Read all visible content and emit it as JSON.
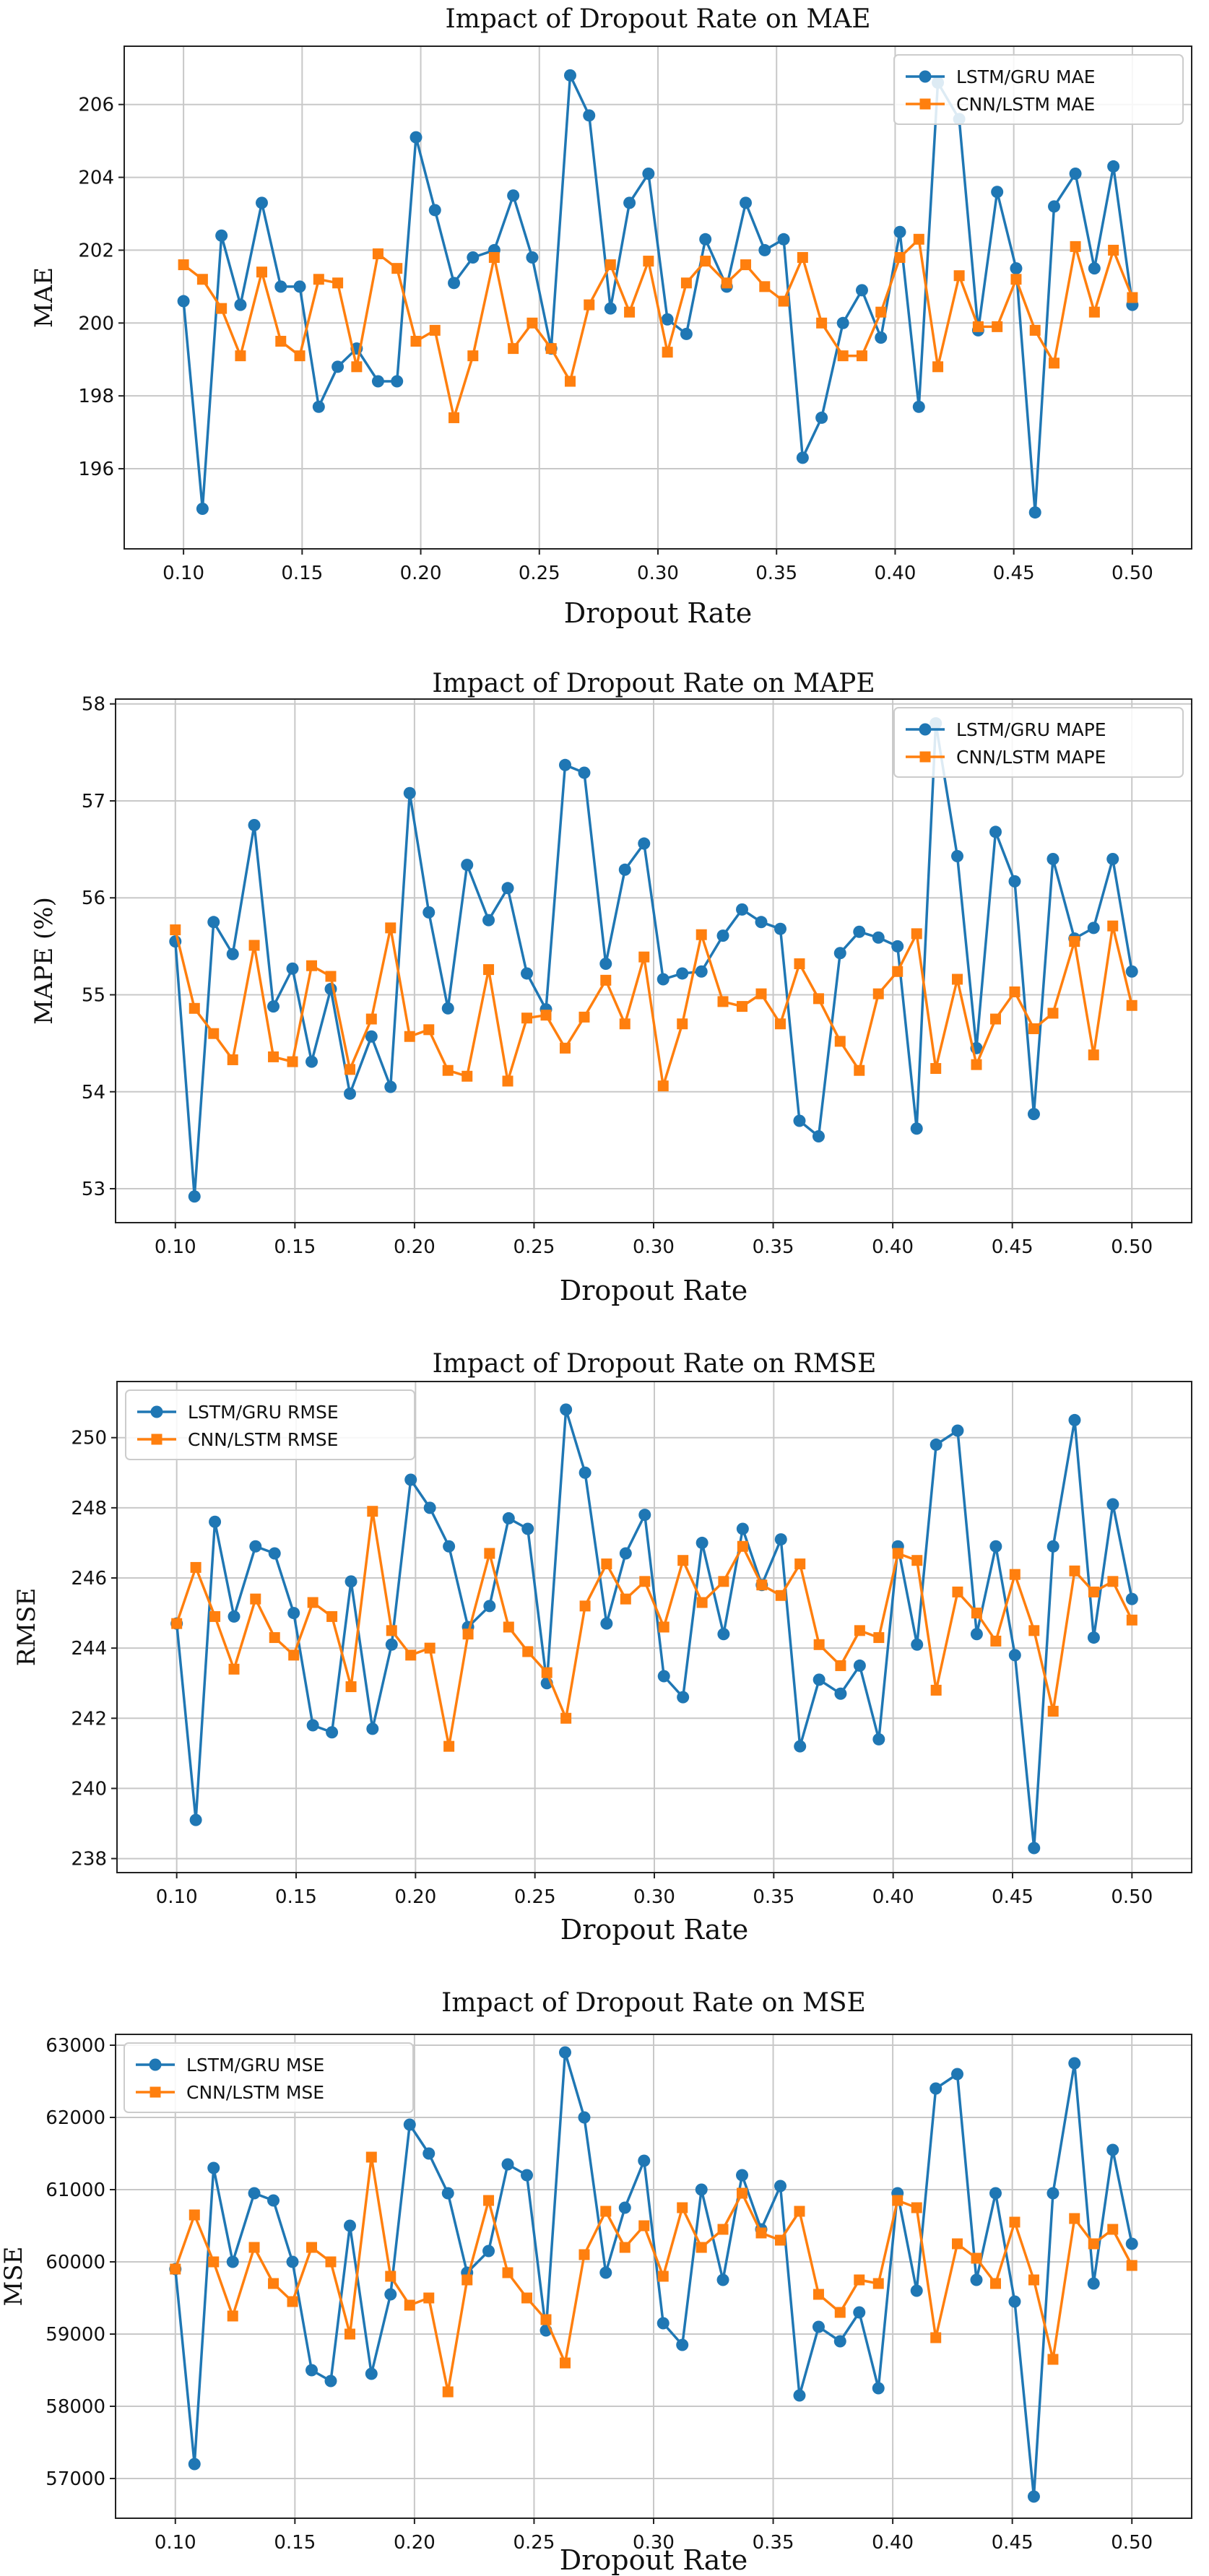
{
  "figure": {
    "colors": {
      "lstm": "#1f77b4",
      "cnn": "#ff7f0e"
    }
  },
  "chart_data": [
    {
      "type": "line",
      "title": "Impact of Dropout Rate on MAE",
      "xlabel": "Dropout Rate",
      "ylabel": "MAE",
      "xlim": [
        0.075,
        0.525
      ],
      "ylim": [
        193.8,
        207.6
      ],
      "xticks": [
        0.1,
        0.15,
        0.2,
        0.25,
        0.3,
        0.35,
        0.4,
        0.45,
        0.5
      ],
      "xtick_labels": [
        "0.10",
        "0.15",
        "0.20",
        "0.25",
        "0.30",
        "0.35",
        "0.40",
        "0.45",
        "0.50"
      ],
      "yticks": [
        196,
        198,
        200,
        202,
        204,
        206
      ],
      "ytick_labels": [
        "196",
        "198",
        "200",
        "202",
        "204",
        "206"
      ],
      "grid": true,
      "legend": "top-right",
      "x": [
        0.1,
        0.108,
        0.116,
        0.124,
        0.133,
        0.141,
        0.149,
        0.157,
        0.165,
        0.173,
        0.182,
        0.19,
        0.198,
        0.206,
        0.214,
        0.222,
        0.231,
        0.239,
        0.247,
        0.255,
        0.263,
        0.271,
        0.28,
        0.288,
        0.296,
        0.304,
        0.312,
        0.32,
        0.329,
        0.337,
        0.345,
        0.353,
        0.361,
        0.369,
        0.378,
        0.386,
        0.394,
        0.402,
        0.41,
        0.418,
        0.427,
        0.435,
        0.443,
        0.451,
        0.459,
        0.467,
        0.476,
        0.484,
        0.492,
        0.5
      ],
      "series": [
        {
          "name": "LSTM/GRU MAE",
          "marker": "circle",
          "color": "#1f77b4",
          "values": [
            200.6,
            194.9,
            202.4,
            200.5,
            203.3,
            201.0,
            201.0,
            197.7,
            198.8,
            199.3,
            198.4,
            198.4,
            205.1,
            203.1,
            201.1,
            201.8,
            202.0,
            203.5,
            201.8,
            199.3,
            206.8,
            205.7,
            200.4,
            203.3,
            204.1,
            200.1,
            199.7,
            202.3,
            201.0,
            203.3,
            202.0,
            202.3,
            196.3,
            197.4,
            200.0,
            200.9,
            199.6,
            202.5,
            197.7,
            206.6,
            205.6,
            199.8,
            203.6,
            201.5,
            194.8,
            203.2,
            204.1,
            201.5,
            204.3,
            200.5
          ]
        },
        {
          "name": "CNN/LSTM MAE",
          "marker": "square",
          "color": "#ff7f0e",
          "values": [
            201.6,
            201.2,
            200.4,
            199.1,
            201.4,
            199.5,
            199.1,
            201.2,
            201.1,
            198.8,
            201.9,
            201.5,
            199.5,
            199.8,
            197.4,
            199.1,
            201.8,
            199.3,
            200.0,
            199.3,
            198.4,
            200.5,
            201.6,
            200.3,
            201.7,
            199.2,
            201.1,
            201.7,
            201.1,
            201.6,
            201.0,
            200.6,
            201.8,
            200.0,
            199.1,
            199.1,
            200.3,
            201.8,
            202.3,
            198.8,
            201.3,
            199.9,
            199.9,
            201.2,
            199.8,
            198.9,
            202.1,
            200.3,
            202.0,
            200.7
          ]
        }
      ]
    },
    {
      "type": "line",
      "title": "Impact of Dropout Rate on MAPE",
      "xlabel": "Dropout Rate",
      "ylabel": "MAPE (%)",
      "xlim": [
        0.075,
        0.525
      ],
      "ylim": [
        52.65,
        58.05
      ],
      "xticks": [
        0.1,
        0.15,
        0.2,
        0.25,
        0.3,
        0.35,
        0.4,
        0.45,
        0.5
      ],
      "xtick_labels": [
        "0.10",
        "0.15",
        "0.20",
        "0.25",
        "0.30",
        "0.35",
        "0.40",
        "0.45",
        "0.50"
      ],
      "yticks": [
        53,
        54,
        55,
        56,
        57,
        58
      ],
      "ytick_labels": [
        "53",
        "54",
        "55",
        "56",
        "57",
        "58"
      ],
      "grid": true,
      "legend": "top-right",
      "x": [
        0.1,
        0.108,
        0.116,
        0.124,
        0.133,
        0.141,
        0.149,
        0.157,
        0.165,
        0.173,
        0.182,
        0.19,
        0.198,
        0.206,
        0.214,
        0.222,
        0.231,
        0.239,
        0.247,
        0.255,
        0.263,
        0.271,
        0.28,
        0.288,
        0.296,
        0.304,
        0.312,
        0.32,
        0.329,
        0.337,
        0.345,
        0.353,
        0.361,
        0.369,
        0.378,
        0.386,
        0.394,
        0.402,
        0.41,
        0.418,
        0.427,
        0.435,
        0.443,
        0.451,
        0.459,
        0.467,
        0.476,
        0.484,
        0.492,
        0.5
      ],
      "series": [
        {
          "name": "LSTM/GRU MAPE",
          "marker": "circle",
          "color": "#1f77b4",
          "values": [
            55.55,
            52.92,
            55.75,
            55.42,
            56.75,
            54.88,
            55.27,
            54.31,
            55.06,
            53.98,
            54.57,
            54.05,
            57.08,
            55.85,
            54.86,
            56.34,
            55.77,
            56.1,
            55.22,
            54.85,
            57.37,
            57.29,
            55.32,
            56.29,
            56.56,
            55.16,
            55.22,
            55.24,
            55.61,
            55.88,
            55.75,
            55.68,
            53.7,
            53.54,
            55.43,
            55.65,
            55.59,
            55.5,
            53.62,
            57.8,
            56.43,
            54.45,
            56.68,
            56.17,
            53.77,
            56.4,
            55.58,
            55.69,
            56.4,
            55.24
          ]
        },
        {
          "name": "CNN/LSTM MAPE",
          "marker": "square",
          "color": "#ff7f0e",
          "values": [
            55.67,
            54.86,
            54.6,
            54.33,
            55.51,
            54.36,
            54.31,
            55.3,
            55.19,
            54.23,
            54.75,
            55.69,
            54.57,
            54.64,
            54.22,
            54.16,
            55.26,
            54.11,
            54.76,
            54.79,
            54.45,
            54.77,
            55.15,
            54.7,
            55.39,
            54.06,
            54.7,
            55.62,
            54.93,
            54.88,
            55.01,
            54.7,
            55.32,
            54.96,
            54.52,
            54.22,
            55.01,
            55.24,
            55.63,
            54.24,
            55.16,
            54.28,
            54.75,
            55.03,
            54.65,
            54.81,
            55.55,
            54.38,
            55.71,
            54.89
          ]
        }
      ]
    },
    {
      "type": "line",
      "title": "Impact of Dropout Rate on RMSE",
      "xlabel": "Dropout Rate",
      "ylabel": "RMSE",
      "xlim": [
        0.075,
        0.525
      ],
      "ylim": [
        237.6,
        251.6
      ],
      "xticks": [
        0.1,
        0.15,
        0.2,
        0.25,
        0.3,
        0.35,
        0.4,
        0.45,
        0.5
      ],
      "xtick_labels": [
        "0.10",
        "0.15",
        "0.20",
        "0.25",
        "0.30",
        "0.35",
        "0.40",
        "0.45",
        "0.50"
      ],
      "yticks": [
        238,
        240,
        242,
        244,
        246,
        248,
        250
      ],
      "ytick_labels": [
        "238",
        "240",
        "242",
        "244",
        "246",
        "248",
        "250"
      ],
      "grid": true,
      "legend": "top-left",
      "x": [
        0.1,
        0.108,
        0.116,
        0.124,
        0.133,
        0.141,
        0.149,
        0.157,
        0.165,
        0.173,
        0.182,
        0.19,
        0.198,
        0.206,
        0.214,
        0.222,
        0.231,
        0.239,
        0.247,
        0.255,
        0.263,
        0.271,
        0.28,
        0.288,
        0.296,
        0.304,
        0.312,
        0.32,
        0.329,
        0.337,
        0.345,
        0.353,
        0.361,
        0.369,
        0.378,
        0.386,
        0.394,
        0.402,
        0.41,
        0.418,
        0.427,
        0.435,
        0.443,
        0.451,
        0.459,
        0.467,
        0.476,
        0.484,
        0.492,
        0.5
      ],
      "series": [
        {
          "name": "LSTM/GRU RMSE",
          "marker": "circle",
          "color": "#1f77b4",
          "values": [
            244.7,
            239.1,
            247.6,
            244.9,
            246.9,
            246.7,
            245.0,
            241.8,
            241.6,
            245.9,
            241.7,
            244.1,
            248.8,
            248.0,
            246.9,
            244.6,
            245.2,
            247.7,
            247.4,
            243.0,
            250.8,
            249.0,
            244.7,
            246.7,
            247.8,
            243.2,
            242.6,
            247.0,
            244.4,
            247.4,
            245.8,
            247.1,
            241.2,
            243.1,
            242.7,
            243.5,
            241.4,
            246.9,
            244.1,
            249.8,
            250.2,
            244.4,
            246.9,
            243.8,
            238.3,
            246.9,
            250.5,
            244.3,
            248.1,
            245.4
          ]
        },
        {
          "name": "CNN/LSTM RMSE",
          "marker": "square",
          "color": "#ff7f0e",
          "values": [
            244.7,
            246.3,
            244.9,
            243.4,
            245.4,
            244.3,
            243.8,
            245.3,
            244.9,
            242.9,
            247.9,
            244.5,
            243.8,
            244.0,
            241.2,
            244.4,
            246.7,
            244.6,
            243.9,
            243.3,
            242.0,
            245.2,
            246.4,
            245.4,
            245.9,
            244.6,
            246.5,
            245.3,
            245.9,
            246.9,
            245.8,
            245.5,
            246.4,
            244.1,
            243.5,
            244.5,
            244.3,
            246.7,
            246.5,
            242.8,
            245.6,
            245.0,
            244.2,
            246.1,
            244.5,
            242.2,
            246.2,
            245.6,
            245.9,
            244.8
          ]
        }
      ]
    },
    {
      "type": "line",
      "title": "Impact of Dropout Rate on MSE",
      "xlabel": "Dropout Rate",
      "ylabel": "MSE",
      "xlim": [
        0.075,
        0.525
      ],
      "ylim": [
        56450,
        63150
      ],
      "xticks": [
        0.1,
        0.15,
        0.2,
        0.25,
        0.3,
        0.35,
        0.4,
        0.45,
        0.5
      ],
      "xtick_labels": [
        "0.10",
        "0.15",
        "0.20",
        "0.25",
        "0.30",
        "0.35",
        "0.40",
        "0.45",
        "0.50"
      ],
      "yticks": [
        57000,
        58000,
        59000,
        60000,
        61000,
        62000,
        63000
      ],
      "ytick_labels": [
        "57000",
        "58000",
        "59000",
        "60000",
        "61000",
        "62000",
        "63000"
      ],
      "grid": true,
      "legend": "top-left",
      "x": [
        0.1,
        0.108,
        0.116,
        0.124,
        0.133,
        0.141,
        0.149,
        0.157,
        0.165,
        0.173,
        0.182,
        0.19,
        0.198,
        0.206,
        0.214,
        0.222,
        0.231,
        0.239,
        0.247,
        0.255,
        0.263,
        0.271,
        0.28,
        0.288,
        0.296,
        0.304,
        0.312,
        0.32,
        0.329,
        0.337,
        0.345,
        0.353,
        0.361,
        0.369,
        0.378,
        0.386,
        0.394,
        0.402,
        0.41,
        0.418,
        0.427,
        0.435,
        0.443,
        0.451,
        0.459,
        0.467,
        0.476,
        0.484,
        0.492,
        0.5
      ],
      "series": [
        {
          "name": "LSTM/GRU MSE",
          "marker": "circle",
          "color": "#1f77b4",
          "values": [
            59900,
            57200,
            61300,
            60000,
            60950,
            60850,
            60000,
            58500,
            58350,
            60500,
            58450,
            59550,
            61900,
            61500,
            60950,
            59850,
            60150,
            61350,
            61200,
            59050,
            62900,
            62000,
            59850,
            60750,
            61400,
            59150,
            58850,
            61000,
            59750,
            61200,
            60450,
            61050,
            58150,
            59100,
            58900,
            59300,
            58250,
            60950,
            59600,
            62400,
            62600,
            59750,
            60950,
            59450,
            56750,
            60950,
            62750,
            59700,
            61550,
            60250
          ]
        },
        {
          "name": "CNN/LSTM MSE",
          "marker": "square",
          "color": "#ff7f0e",
          "values": [
            59900,
            60650,
            60000,
            59250,
            60200,
            59700,
            59450,
            60200,
            60000,
            59000,
            61450,
            59800,
            59400,
            59500,
            58200,
            59750,
            60850,
            59850,
            59500,
            59200,
            58600,
            60100,
            60700,
            60200,
            60500,
            59800,
            60750,
            60200,
            60450,
            60950,
            60400,
            60300,
            60700,
            59550,
            59300,
            59750,
            59700,
            60850,
            60750,
            58950,
            60250,
            60050,
            59700,
            60550,
            59750,
            58650,
            60600,
            60250,
            60450,
            59950
          ]
        }
      ]
    }
  ]
}
